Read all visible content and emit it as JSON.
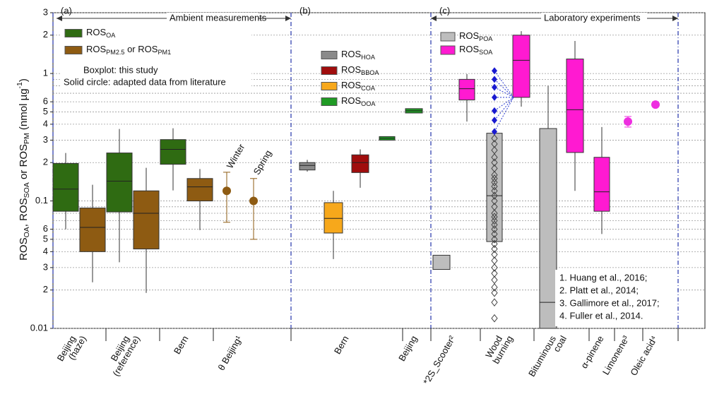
{
  "chart_data": {
    "type": "box",
    "y_label": [
      "ROS",
      {
        "sub": "OA"
      },
      ", ROS",
      {
        "sub": "SOA"
      },
      " or ROS",
      {
        "sub": "PM"
      },
      " (nmol µg",
      {
        "sup": "-1"
      },
      ")"
    ],
    "log_y": true,
    "grid": true,
    "ylim": [
      0.01,
      3
    ],
    "yticks": [
      {
        "value": 0.01,
        "label": "0.01"
      },
      {
        "value": 0.02,
        "label": "2"
      },
      {
        "value": 0.03,
        "label": "3"
      },
      {
        "value": 0.04,
        "label": "4"
      },
      {
        "value": 0.05,
        "label": "5"
      },
      {
        "value": 0.06,
        "label": "6"
      },
      0.1,
      {
        "value": 0.2,
        "label": "2"
      },
      {
        "value": 0.3,
        "label": "3"
      },
      {
        "value": 0.4,
        "label": "4"
      },
      {
        "value": 0.5,
        "label": "5"
      },
      {
        "value": 0.6,
        "label": "6"
      },
      1,
      2,
      3
    ],
    "minor_yticks": [
      0.07,
      0.08,
      0.09,
      0.7,
      0.8,
      0.9
    ],
    "panels": [
      "(a)",
      "(b)",
      "(c)"
    ],
    "sections": [
      "Ambient measurements",
      "Laboratory experiments"
    ],
    "categories": [
      [
        "Beijing",
        "(haze)"
      ],
      [
        "Beijing",
        "(reference)"
      ],
      [
        "Bern"
      ],
      [
        "θ Beijing¹"
      ],
      [
        "Bern"
      ],
      [
        "Beijing"
      ],
      [
        "*2S_Scooter²"
      ],
      [
        "Wood",
        "burning"
      ],
      [
        "Bituminous",
        "coal"
      ],
      [
        "α-pinene"
      ],
      [
        "Limonene³"
      ],
      [
        "Oleic acid⁴"
      ]
    ],
    "legend_a": [
      {
        "label": [
          "ROS",
          {
            "sub": "OA"
          }
        ],
        "color": "#2f6b12"
      },
      {
        "label": [
          "ROS",
          {
            "sub": "PM2.5"
          },
          " or ROS",
          {
            "sub": "PM1"
          }
        ],
        "color": "#8e5b12"
      }
    ],
    "notes_a": [
      "Boxplot: this study",
      "Solid circle: adapted data from literature"
    ],
    "legend_b": [
      {
        "label": [
          "ROS",
          {
            "sub": "HOA"
          }
        ],
        "color": "#8a8a8a"
      },
      {
        "label": [
          "ROS",
          {
            "sub": "BBOA"
          }
        ],
        "color": "#a00d0d"
      },
      {
        "label": [
          "ROS",
          {
            "sub": "COA"
          }
        ],
        "color": "#f7a81b"
      },
      {
        "label": [
          "ROS",
          {
            "sub": "OOA"
          }
        ],
        "color": "#1f9a24"
      }
    ],
    "legend_c": [
      {
        "label": [
          "ROS",
          {
            "sub": "POA"
          }
        ],
        "color": "#bdbdbd"
      },
      {
        "label": [
          "ROS",
          {
            "sub": "SOA"
          }
        ],
        "color": "#ff1ad1"
      }
    ],
    "references": [
      "1. Huang et al., 2016;",
      "2. Platt et al., 2014;",
      "3. Gallimore et al., 2017;",
      "4. Fuller et al., 2014."
    ],
    "boxes": [
      {
        "color": "#2f6b12",
        "whisker_low": 0.06,
        "q1": 0.083,
        "median": 0.124,
        "q3": 0.197,
        "whisker_high": 0.238
      },
      {
        "color": "#8e5b12",
        "whisker_low": 0.023,
        "q1": 0.04,
        "median": 0.062,
        "q3": 0.088,
        "whisker_high": 0.134
      },
      {
        "color": "#2f6b12",
        "whisker_low": 0.033,
        "q1": 0.082,
        "median": 0.143,
        "q3": 0.238,
        "whisker_high": 0.367
      },
      {
        "color": "#8e5b12",
        "whisker_low": 0.019,
        "q1": 0.042,
        "median": 0.08,
        "q3": 0.12,
        "whisker_high": 0.182
      },
      {
        "color": "#2f6b12",
        "whisker_low": 0.121,
        "q1": 0.194,
        "median": 0.254,
        "q3": 0.303,
        "whisker_high": 0.372
      },
      {
        "color": "#8e5b12",
        "whisker_low": 0.059,
        "q1": 0.1,
        "median": 0.129,
        "q3": 0.15,
        "whisker_high": 0.178
      },
      {
        "color": "#8a8a8a",
        "whisker_low": 0.17,
        "q1": 0.175,
        "median": 0.19,
        "q3": 0.2,
        "whisker_high": 0.21
      },
      {
        "color": "#f7a81b",
        "whisker_low": 0.035,
        "q1": 0.056,
        "median": 0.073,
        "q3": 0.097,
        "whisker_high": 0.12
      },
      {
        "color": "#a00d0d",
        "whisker_low": 0.127,
        "q1": 0.167,
        "median": 0.2,
        "q3": 0.23,
        "whisker_high": 0.254
      },
      {
        "color": "#1f9a24",
        "q1": 0.3,
        "median": 0.31,
        "q3": 0.32
      },
      {
        "color": "#1f9a24",
        "q1": 0.49,
        "median": 0.51,
        "q3": 0.53
      },
      {
        "color": "#bdbdbd",
        "q1": 0.029,
        "q3": 0.0375
      },
      {
        "color": "#ff1ad1",
        "whisker_low": 0.42,
        "q1": 0.62,
        "median": 0.76,
        "q3": 0.9,
        "whisker_high": 0.99
      },
      {
        "color": "#bdbdbd",
        "q1": 0.048,
        "median": 0.11,
        "q3": 0.34
      },
      {
        "color": "#ff1ad1",
        "whisker_low": 0.55,
        "q1": 0.65,
        "median": 1.27,
        "q3": 2.0,
        "whisker_high": 2.15
      },
      {
        "color": "#bdbdbd",
        "q1": 0.01,
        "median": 0.016,
        "q3": 0.37,
        "whisker_high": 0.8
      },
      {
        "color": "#ff1ad1",
        "whisker_low": 0.12,
        "q1": 0.24,
        "median": 0.52,
        "q3": 1.3,
        "whisker_high": 1.8
      },
      {
        "color": "#ff1ad1",
        "whisker_low": 0.055,
        "q1": 0.083,
        "median": 0.118,
        "q3": 0.22,
        "whisker_high": 0.38
      }
    ],
    "circles": [
      {
        "label": "Winter",
        "color": "#8e5b12",
        "value": 0.12,
        "err_low": 0.068,
        "err_high": 0.168
      },
      {
        "label": "Spring",
        "color": "#8e5b12",
        "value": 0.1,
        "err_low": 0.05,
        "err_high": 0.15
      },
      {
        "color": "#ee2ee0",
        "value": 0.42,
        "err_low": 0.38,
        "err_high": 0.46
      },
      {
        "color": "#ee2ee0",
        "value": 0.57
      }
    ],
    "wood_points": [
      0.012,
      0.016,
      0.019,
      0.021,
      0.024,
      0.027,
      0.03,
      0.034,
      0.038,
      0.042,
      0.046,
      0.05,
      0.055,
      0.06,
      0.065,
      0.07,
      0.075,
      0.08,
      0.09,
      0.1,
      0.11,
      0.12,
      0.13,
      0.14,
      0.15,
      0.16,
      0.18,
      0.2,
      0.22,
      0.25,
      0.28,
      0.31
    ],
    "wood_points_highlight": [
      0.35,
      0.43,
      0.51,
      0.65,
      0.78,
      0.9,
      1.05
    ]
  }
}
